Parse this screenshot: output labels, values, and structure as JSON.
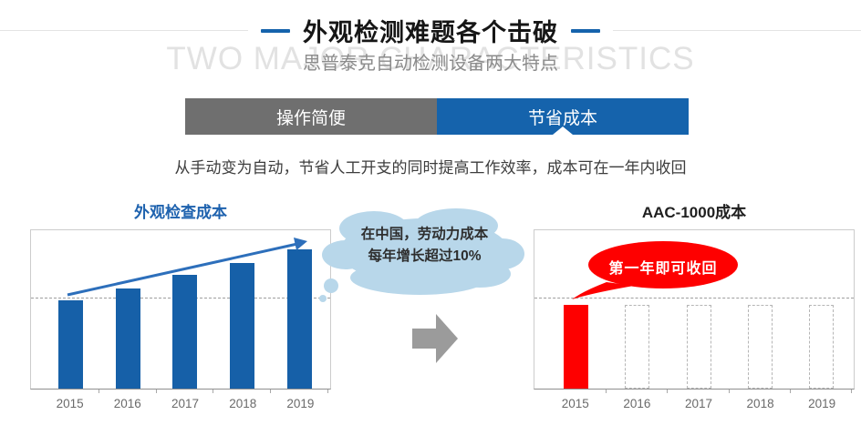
{
  "header": {
    "title": "外观检测难题各个击破",
    "subtitle": "思普泰克自动检测设备两大特点",
    "background_text": "TWO MAJOR CHARACTERISTICS"
  },
  "tabs": {
    "items": [
      {
        "label": "操作简便",
        "active": false
      },
      {
        "label": "节省成本",
        "active": true
      }
    ]
  },
  "description": "从手动变为自动，节省人工开支的同时提高工作效率，成本可在一年内收回",
  "callouts": {
    "cloud_line1": "在中国，劳动力成本",
    "cloud_line2": "每年增长超过10%",
    "bubble": "第一年即可收回"
  },
  "colors": {
    "accent_blue": "#1563ac",
    "tab_gray": "#6f6f6f",
    "bar_blue": "#1660a8",
    "bar_red": "#fe0000",
    "dashed_bar_outline": "#b5b5b5",
    "cloud_blue": "#b8d7ea",
    "arrow_gray": "#9b9b9b",
    "watermark_gray": "#e2e2e2",
    "trend_arrow_blue": "#2d6fbb"
  },
  "chart_data": [
    {
      "type": "bar",
      "title": "外观检查成本",
      "categories": [
        "2015",
        "2016",
        "2017",
        "2018",
        "2019"
      ],
      "values": [
        100,
        114,
        129,
        143,
        158
      ],
      "ylim": [
        0,
        180
      ],
      "bar_color": "#1660a8",
      "reference_line": 103,
      "grid": "single horizontal dashed reference line",
      "legend": "none",
      "annotation": "blue rising trend arrow from 2015 bar top to 2019 bar top",
      "xlabel": "",
      "ylabel": ""
    },
    {
      "type": "bar",
      "title": "AAC-1000成本",
      "categories": [
        "2015",
        "2016",
        "2017",
        "2018",
        "2019"
      ],
      "values": [
        95,
        95,
        95,
        95,
        95
      ],
      "bar_styles": [
        "solid",
        "dashed",
        "dashed",
        "dashed",
        "dashed"
      ],
      "ylim": [
        0,
        180
      ],
      "bar_color": "#fe0000",
      "dashed_outline_color": "#b5b5b5",
      "reference_line": 103,
      "grid": "single horizontal dashed reference line",
      "legend": "none",
      "annotation": "only first year cost is real (red); later years are empty dashed placeholders",
      "xlabel": "",
      "ylabel": ""
    }
  ]
}
